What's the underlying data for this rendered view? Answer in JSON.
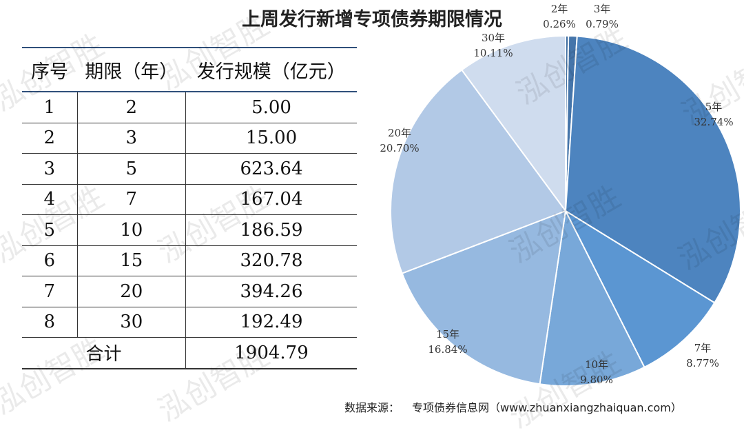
{
  "title": "上周发行新增专项债券期限情况",
  "table": {
    "headers": [
      "序号",
      "期限（年）",
      "发行规模（亿元）"
    ],
    "rows": [
      [
        "1",
        "2",
        "5.00"
      ],
      [
        "2",
        "3",
        "15.00"
      ],
      [
        "3",
        "5",
        "623.64"
      ],
      [
        "4",
        "7",
        "167.04"
      ],
      [
        "5",
        "10",
        "186.59"
      ],
      [
        "6",
        "15",
        "320.78"
      ],
      [
        "7",
        "20",
        "394.26"
      ],
      [
        "8",
        "30",
        "192.49"
      ]
    ],
    "total_label": "合计",
    "total_value": "1904.79"
  },
  "chart_data": {
    "type": "pie",
    "title": "",
    "slices": [
      {
        "label": "2年",
        "pct_text": "0.26%",
        "value": 5.0,
        "color": "#3a6a9e"
      },
      {
        "label": "3年",
        "pct_text": "0.79%",
        "value": 15.0,
        "color": "#4575aa"
      },
      {
        "label": "5年",
        "pct_text": "32.74%",
        "value": 623.64,
        "color": "#4d84bf"
      },
      {
        "label": "7年",
        "pct_text": "8.77%",
        "value": 167.04,
        "color": "#5b96d2"
      },
      {
        "label": "10年",
        "pct_text": "9.80%",
        "value": 186.59,
        "color": "#78a8d9"
      },
      {
        "label": "15年",
        "pct_text": "16.84%",
        "value": 320.78,
        "color": "#96b9e0"
      },
      {
        "label": "20年",
        "pct_text": "20.70%",
        "value": 394.26,
        "color": "#b2c9e6"
      },
      {
        "label": "30年",
        "pct_text": "10.11%",
        "value": 192.49,
        "color": "#cfdcee"
      }
    ]
  },
  "source": {
    "label": "数据来源：",
    "text": "专项债券信息网（www.zhuanxiangzhaiquan.com）"
  },
  "watermark": "泓创智胜"
}
